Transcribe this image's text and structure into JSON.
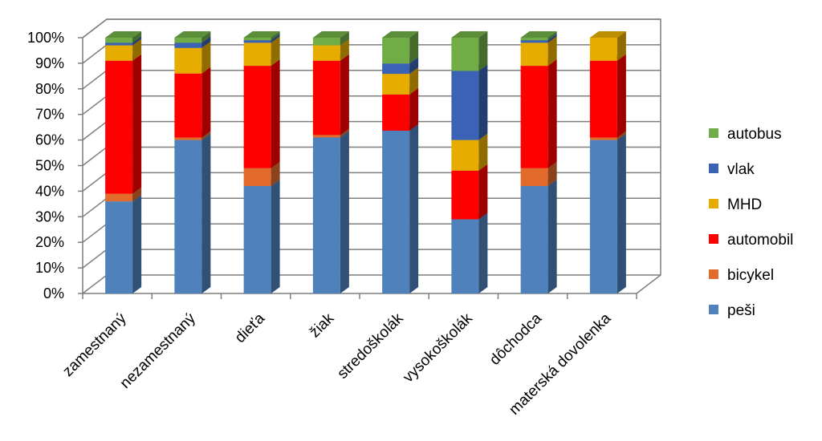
{
  "chart_data": {
    "type": "bar",
    "stacked": true,
    "percent_stacked": true,
    "three_d": true,
    "categories": [
      "zamestnaný",
      "nezamestnaný",
      "dieťa",
      "žiak",
      "stredoškolák",
      "vysokoškolák",
      "dôchodca",
      "materská dovolenka"
    ],
    "series": [
      {
        "name": "peši",
        "color": "#4F81BD",
        "values": [
          36,
          60,
          42,
          61,
          63,
          29,
          42,
          60
        ]
      },
      {
        "name": "bicykel",
        "color": "#E26B2C",
        "values": [
          3,
          1,
          7,
          1,
          0,
          0,
          7,
          1
        ]
      },
      {
        "name": "automobil",
        "color": "#FF0000",
        "values": [
          52,
          25,
          40,
          29,
          14,
          19,
          40,
          30
        ]
      },
      {
        "name": "MHD",
        "color": "#E6AC00",
        "values": [
          6,
          10,
          9,
          6,
          8,
          12,
          9,
          9
        ]
      },
      {
        "name": "vlak",
        "color": "#3A63B5",
        "values": [
          1,
          2,
          1,
          0,
          4,
          27,
          1,
          0
        ]
      },
      {
        "name": "autobus",
        "color": "#70AD47",
        "values": [
          2,
          2,
          1,
          3,
          10,
          13,
          1,
          0
        ]
      }
    ],
    "ylim": [
      0,
      100
    ],
    "y_ticks": [
      "0%",
      "10%",
      "20%",
      "30%",
      "40%",
      "50%",
      "60%",
      "70%",
      "80%",
      "90%",
      "100%"
    ],
    "grid": true,
    "legend_position": "right",
    "legend_order": [
      "autobus",
      "vlak",
      "MHD",
      "automobil",
      "bicykel",
      "peši"
    ]
  }
}
